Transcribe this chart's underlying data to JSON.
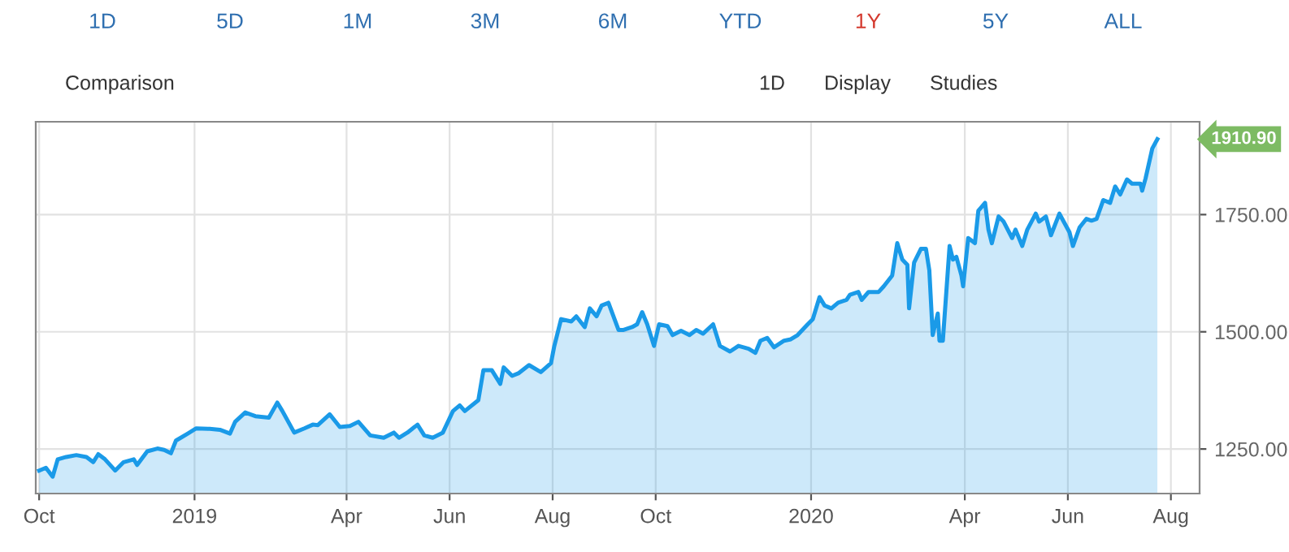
{
  "chart_data": {
    "type": "area",
    "annotations": [
      "1D",
      "5D",
      "1M",
      "3M",
      "6M",
      "YTD",
      "1Y",
      "5Y",
      "ALL",
      "Comparison",
      "1D",
      "Display",
      "Studies",
      "1910.90"
    ],
    "x": [
      "2018-10-01",
      "2018-10-05",
      "2018-10-09",
      "2018-10-12",
      "2018-10-17",
      "2018-10-23",
      "2018-10-29",
      "2018-11-02",
      "2018-11-05",
      "2018-11-09",
      "2018-11-15",
      "2018-11-20",
      "2018-11-26",
      "2018-11-28",
      "2018-12-04",
      "2018-12-10",
      "2018-12-14",
      "2018-12-18",
      "2018-12-21",
      "2018-12-28",
      "2019-01-02",
      "2019-01-10",
      "2019-01-16",
      "2019-01-22",
      "2019-01-25",
      "2019-01-31",
      "2019-02-06",
      "2019-02-14",
      "2019-02-19",
      "2019-02-22",
      "2019-03-01",
      "2019-03-07",
      "2019-03-12",
      "2019-03-15",
      "2019-03-22",
      "2019-03-28",
      "2019-04-03",
      "2019-04-08",
      "2019-04-15",
      "2019-04-23",
      "2019-04-29",
      "2019-05-02",
      "2019-05-07",
      "2019-05-13",
      "2019-05-17",
      "2019-05-22",
      "2019-05-28",
      "2019-06-03",
      "2019-06-07",
      "2019-06-10",
      "2019-06-18",
      "2019-06-21",
      "2019-06-26",
      "2019-07-01",
      "2019-07-03",
      "2019-07-08",
      "2019-07-12",
      "2019-07-18",
      "2019-07-25",
      "2019-07-31",
      "2019-08-02",
      "2019-08-06",
      "2019-08-12",
      "2019-08-15",
      "2019-08-20",
      "2019-08-23",
      "2019-08-27",
      "2019-08-30",
      "2019-09-03",
      "2019-09-09",
      "2019-09-12",
      "2019-09-17",
      "2019-09-20",
      "2019-09-23",
      "2019-09-26",
      "2019-09-30",
      "2019-10-03",
      "2019-10-08",
      "2019-10-11",
      "2019-10-16",
      "2019-10-21",
      "2019-10-25",
      "2019-10-29",
      "2019-11-04",
      "2019-11-06",
      "2019-11-08",
      "2019-11-14",
      "2019-11-19",
      "2019-11-25",
      "2019-11-29",
      "2019-12-02",
      "2019-12-06",
      "2019-12-10",
      "2019-12-16",
      "2019-12-20",
      "2019-12-24",
      "2019-12-30",
      "2020-01-02",
      "2020-01-06",
      "2020-01-09",
      "2020-01-13",
      "2020-01-17",
      "2020-01-22",
      "2020-01-24",
      "2020-01-29",
      "2020-01-31",
      "2020-02-04",
      "2020-02-10",
      "2020-02-13",
      "2020-02-18",
      "2020-02-21",
      "2020-02-24",
      "2020-02-27",
      "2020-02-28",
      "2020-03-02",
      "2020-03-06",
      "2020-03-09",
      "2020-03-11",
      "2020-03-13",
      "2020-03-16",
      "2020-03-17",
      "2020-03-19",
      "2020-03-23",
      "2020-03-25",
      "2020-03-27",
      "2020-03-30",
      "2020-03-31",
      "2020-04-03",
      "2020-04-07",
      "2020-04-09",
      "2020-04-13",
      "2020-04-15",
      "2020-04-17",
      "2020-04-21",
      "2020-04-24",
      "2020-04-29",
      "2020-05-01",
      "2020-05-05",
      "2020-05-08",
      "2020-05-13",
      "2020-05-15",
      "2020-05-19",
      "2020-05-22",
      "2020-05-27",
      "2020-06-02",
      "2020-06-04",
      "2020-06-08",
      "2020-06-12",
      "2020-06-15",
      "2020-06-18",
      "2020-06-22",
      "2020-06-26",
      "2020-06-29",
      "2020-07-02",
      "2020-07-06",
      "2020-07-09",
      "2020-07-14",
      "2020-07-15",
      "2020-07-17",
      "2020-07-21",
      "2020-07-24"
    ],
    "series": [
      {
        "color": "#1a9ae8",
        "values": [
          1204,
          1210,
          1191,
          1228,
          1233,
          1237,
          1233,
          1222,
          1239,
          1228,
          1204,
          1222,
          1228,
          1216,
          1245,
          1251,
          1248,
          1241,
          1268,
          1283,
          1294,
          1293,
          1291,
          1283,
          1308,
          1328,
          1320,
          1317,
          1349,
          1331,
          1285,
          1294,
          1302,
          1301,
          1324,
          1297,
          1299,
          1308,
          1279,
          1274,
          1285,
          1274,
          1285,
          1302,
          1279,
          1274,
          1285,
          1331,
          1343,
          1331,
          1354,
          1418,
          1418,
          1389,
          1424,
          1406,
          1412,
          1429,
          1414,
          1433,
          1470,
          1527,
          1522,
          1533,
          1510,
          1550,
          1533,
          1556,
          1562,
          1504,
          1504,
          1510,
          1516,
          1542,
          1516,
          1470,
          1516,
          1512,
          1493,
          1502,
          1493,
          1504,
          1496,
          1516,
          1493,
          1470,
          1458,
          1470,
          1464,
          1455,
          1481,
          1487,
          1467,
          1481,
          1484,
          1493,
          1516,
          1527,
          1574,
          1556,
          1550,
          1562,
          1568,
          1579,
          1585,
          1568,
          1585,
          1585,
          1597,
          1620,
          1689,
          1654,
          1643,
          1550,
          1648,
          1677,
          1677,
          1631,
          1493,
          1539,
          1481,
          1481,
          1683,
          1654,
          1660,
          1620,
          1597,
          1700,
          1689,
          1758,
          1775,
          1718,
          1689,
          1746,
          1735,
          1700,
          1718,
          1683,
          1718,
          1752,
          1735,
          1746,
          1706,
          1752,
          1712,
          1683,
          1723,
          1741,
          1737,
          1741,
          1781,
          1775,
          1810,
          1793,
          1825,
          1816,
          1816,
          1801,
          1827,
          1891,
          1910.9
        ]
      }
    ],
    "xlim": [
      "2018-09-29",
      "2020-08-18"
    ],
    "xticks": [
      {
        "value": "2018-10-01",
        "label": "Oct"
      },
      {
        "value": "2019-01-01",
        "label": "2019"
      },
      {
        "value": "2019-04-01",
        "label": "Apr"
      },
      {
        "value": "2019-06-01",
        "label": "Jun"
      },
      {
        "value": "2019-08-01",
        "label": "Aug"
      },
      {
        "value": "2019-10-01",
        "label": "Oct"
      },
      {
        "value": "2020-01-01",
        "label": "2020"
      },
      {
        "value": "2020-04-01",
        "label": "Apr"
      },
      {
        "value": "2020-06-01",
        "label": "Jun"
      },
      {
        "value": "2020-08-01",
        "label": "Aug"
      }
    ],
    "ylim": [
      1155,
      1948
    ],
    "yticks": [
      {
        "value": 1250,
        "label": "1250.00"
      },
      {
        "value": 1500,
        "label": "1500.00"
      },
      {
        "value": 1750,
        "label": "1750.00"
      }
    ],
    "grid": true
  }
}
